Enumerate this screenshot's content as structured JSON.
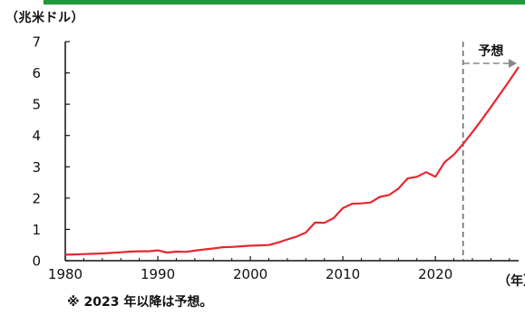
{
  "colors": {
    "accent_bar": "#1f9a3b",
    "line": "#e8262f",
    "axis": "#111111",
    "forecast_guide": "#444444",
    "forecast_arrow": "#888888"
  },
  "chart_data": {
    "type": "line",
    "unit_label": "（兆米ドル）",
    "x_unit_label": "（年）",
    "note": "※ 2023 年以降は予想。",
    "forecast_label": "予想",
    "forecast_start_year": 2023,
    "xlim": [
      1980,
      2029
    ],
    "ylim": [
      0,
      7
    ],
    "x_ticks": [
      1980,
      1990,
      2000,
      2010,
      2020
    ],
    "y_ticks": [
      0,
      1,
      2,
      3,
      4,
      5,
      6,
      7
    ],
    "grid": false,
    "series": [
      {
        "x": [
          1980,
          1981,
          1982,
          1983,
          1984,
          1985,
          1986,
          1987,
          1988,
          1989,
          1990,
          1991,
          1992,
          1993,
          1994,
          1995,
          1996,
          1997,
          1998,
          1999,
          2000,
          2001,
          2002,
          2003,
          2004,
          2005,
          2006,
          2007,
          2008,
          2009,
          2010,
          2011,
          2012,
          2013,
          2014,
          2015,
          2016,
          2017,
          2018,
          2019,
          2020,
          2021,
          2022,
          2023,
          2024,
          2025,
          2026,
          2027,
          2028,
          2029
        ],
        "y": [
          0.19,
          0.2,
          0.21,
          0.22,
          0.23,
          0.25,
          0.27,
          0.29,
          0.3,
          0.3,
          0.33,
          0.26,
          0.29,
          0.28,
          0.32,
          0.36,
          0.39,
          0.43,
          0.44,
          0.46,
          0.48,
          0.49,
          0.5,
          0.58,
          0.68,
          0.77,
          0.9,
          1.22,
          1.21,
          1.36,
          1.68,
          1.82,
          1.83,
          1.86,
          2.04,
          2.1,
          2.3,
          2.63,
          2.68,
          2.83,
          2.68,
          3.15,
          3.39,
          3.73,
          4.11,
          4.5,
          4.91,
          5.33,
          5.75,
          6.19
        ]
      }
    ]
  }
}
